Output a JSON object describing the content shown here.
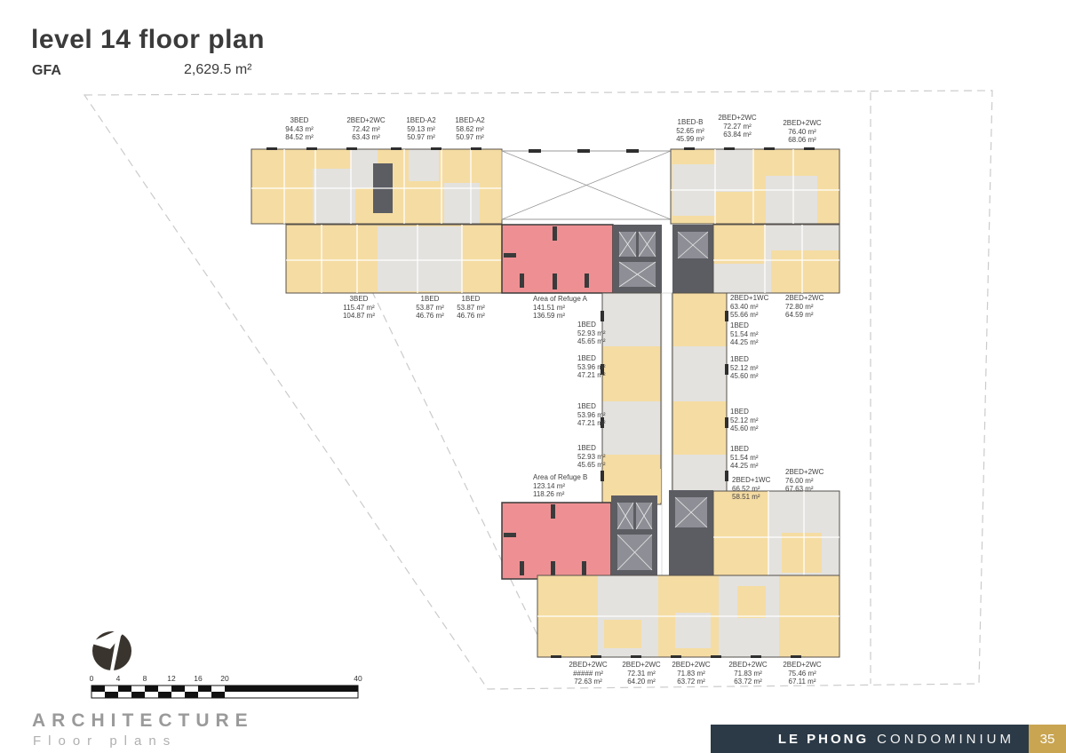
{
  "header": {
    "title": "level 14 floor plan",
    "gfa_label": "GFA",
    "gfa_value": "2,629.5 m²"
  },
  "plan": {
    "refuge_color": "#EE9093",
    "unit_yellow": "#F5DCA2",
    "unit_gray": "#E3E2DF",
    "core_gray": "#5C5D63",
    "labels": [
      {
        "name": "3BED",
        "a1": "94.43 m²",
        "a2": "84.52 m²"
      },
      {
        "name": "2BED+2WC",
        "a1": "72.42 m²",
        "a2": "63.43 m²"
      },
      {
        "name": "1BED-A2",
        "a1": "59.13 m²",
        "a2": "50.97 m²"
      },
      {
        "name": "1BED-A2",
        "a1": "58.62 m²",
        "a2": "50.97 m²"
      },
      {
        "name": "1BED-B",
        "a1": "52.65 m²",
        "a2": "45.99 m²"
      },
      {
        "name": "2BED+2WC",
        "a1": "72.27 m²",
        "a2": "63.84 m²"
      },
      {
        "name": "2BED+2WC",
        "a1": "76.40 m²",
        "a2": "68.06 m²"
      },
      {
        "name": "3BED",
        "a1": "115.47 m²",
        "a2": "104.87 m²"
      },
      {
        "name": "1BED",
        "a1": "53.87 m²",
        "a2": "46.76 m²"
      },
      {
        "name": "1BED",
        "a1": "53.87 m²",
        "a2": "46.76 m²"
      },
      {
        "name": "Area of Refuge A",
        "a1": "141.51 m²",
        "a2": "136.59 m²"
      },
      {
        "name": "2BED+1WC",
        "a1": "63.40 m²",
        "a2": "55.66 m²"
      },
      {
        "name": "2BED+2WC",
        "a1": "72.80 m²",
        "a2": "64.59 m²"
      },
      {
        "name": "1BED",
        "a1": "52.93 m²",
        "a2": "45.65 m²"
      },
      {
        "name": "1BED",
        "a1": "53.96 m²",
        "a2": "47.21 m²"
      },
      {
        "name": "1BED",
        "a1": "53.96 m²",
        "a2": "47.21 m²"
      },
      {
        "name": "1BED",
        "a1": "52.93 m²",
        "a2": "45.65 m²"
      },
      {
        "name": "1BED",
        "a1": "51.54 m²",
        "a2": "44.25 m²"
      },
      {
        "name": "1BED",
        "a1": "52.12 m²",
        "a2": "45.60 m²"
      },
      {
        "name": "1BED",
        "a1": "52.12 m²",
        "a2": "45.60 m²"
      },
      {
        "name": "1BED",
        "a1": "51.54 m²",
        "a2": "44.25 m²"
      },
      {
        "name": "Area of Refuge B",
        "a1": "123.14 m²",
        "a2": "118.26 m²"
      },
      {
        "name": "2BED+1WC",
        "a1": "66.52 m²",
        "a2": "58.51 m²"
      },
      {
        "name": "2BED+2WC",
        "a1": "76.00 m²",
        "a2": "67.63 m²"
      },
      {
        "name": "2BED+2WC",
        "a1": "##### m²",
        "a2": "72.63 m²"
      },
      {
        "name": "2BED+2WC",
        "a1": "72.31 m²",
        "a2": "64.20 m²"
      },
      {
        "name": "2BED+2WC",
        "a1": "71.83 m²",
        "a2": "63.72 m²"
      },
      {
        "name": "2BED+2WC",
        "a1": "71.83 m²",
        "a2": "63.72 m²"
      },
      {
        "name": "2BED+2WC",
        "a1": "75.46 m²",
        "a2": "67.11 m²"
      }
    ]
  },
  "scalebar": {
    "ticks": [
      "0",
      "4",
      "8",
      "12",
      "16",
      "20",
      "40"
    ]
  },
  "branding": {
    "name": "ARCHITECTURE",
    "tagline": "Floor plans"
  },
  "footer": {
    "project": "LE PHONG",
    "type": "CONDOMINIUM",
    "page": "35",
    "navy": "#2C3A47",
    "gold": "#C9A551"
  }
}
